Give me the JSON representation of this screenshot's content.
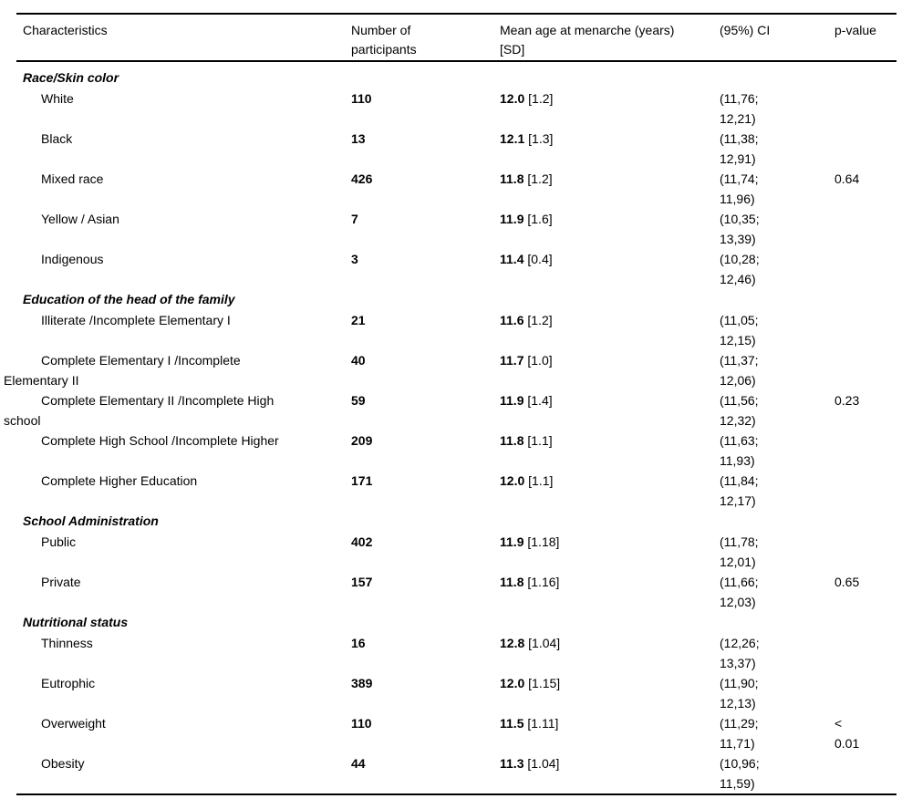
{
  "page": {
    "background_color": "#ffffff",
    "text_color": "#000000",
    "rule_color": "#000000"
  },
  "table": {
    "headers": {
      "characteristics": "Characteristics",
      "participants": [
        "Number of",
        "participants"
      ],
      "mean_age": [
        "Mean age at menarche (years)",
        "[SD]"
      ],
      "ci": "(95%) CI",
      "p_value": "p-value"
    },
    "sections": [
      {
        "title": "Race/Skin color",
        "rows": [
          {
            "label": "White",
            "n": "110",
            "mean": "12.0",
            "sd": "[1.2]",
            "ci": [
              "(11,76;",
              "12,21)"
            ],
            "p": ""
          },
          {
            "label": "Black",
            "n": "13",
            "mean": "12.1",
            "sd": "[1.3]",
            "ci": [
              "(11,38;",
              "12,91)"
            ],
            "p": ""
          },
          {
            "label": "Mixed race",
            "n": "426",
            "mean": "11.8",
            "sd": "[1.2]",
            "ci": [
              "(11,74;",
              "11,96)"
            ],
            "p": "0.64"
          },
          {
            "label": "Yellow / Asian",
            "n": "7",
            "mean": "11.9",
            "sd": "[1.6]",
            "ci": [
              "(10,35;",
              "13,39)"
            ],
            "p": ""
          },
          {
            "label": "Indigenous",
            "n": "3",
            "mean": "11.4",
            "sd": "[0.4]",
            "ci": [
              "(10,28;",
              "12,46)"
            ],
            "p": ""
          }
        ]
      },
      {
        "title": "Education of the head of the family",
        "rows": [
          {
            "label": "Illiterate /Incomplete Elementary I",
            "n": "21",
            "mean": "11.6",
            "sd": "[1.2]",
            "ci": [
              "(11,05;",
              "12,15)"
            ],
            "p": ""
          },
          {
            "label": "Complete Elementary I /Incomplete Elementary II",
            "n": "40",
            "mean": "11.7",
            "sd": "[1.0]",
            "ci": [
              "(11,37;",
              "12,06)"
            ],
            "p": ""
          },
          {
            "label": "Complete Elementary II /Incomplete High school",
            "n": "59",
            "mean": "11.9",
            "sd": "[1.4]",
            "ci": [
              "(11,56;",
              "12,32)"
            ],
            "p": "0.23"
          },
          {
            "label": "Complete High School /Incomplete Higher",
            "n": "209",
            "mean": "11.8",
            "sd": "[1.1]",
            "ci": [
              "(11,63;",
              "11,93)"
            ],
            "p": ""
          },
          {
            "label": "Complete Higher Education",
            "n": "171",
            "mean": "12.0",
            "sd": "[1.1]",
            "ci": [
              "(11,84;",
              "12,17)"
            ],
            "p": ""
          }
        ]
      },
      {
        "title": "School Administration",
        "rows": [
          {
            "label": "Public",
            "n": "402",
            "mean": "11.9",
            "sd": "[1.18]",
            "ci": [
              "(11,78;",
              "12,01)"
            ],
            "p": ""
          },
          {
            "label": "Private",
            "n": "157",
            "mean": "11.8",
            "sd": "[1.16]",
            "ci": [
              "(11,66;",
              "12,03)"
            ],
            "p": "0.65"
          }
        ]
      },
      {
        "title": "Nutritional status",
        "rows": [
          {
            "label": "Thinness",
            "n": "16",
            "mean": "12.8",
            "sd": "[1.04]",
            "ci": [
              "(12,26;",
              "13,37)"
            ],
            "p": ""
          },
          {
            "label": "Eutrophic",
            "n": "389",
            "mean": "12.0",
            "sd": "[1.15]",
            "ci": [
              "(11,90;",
              "12,13)"
            ],
            "p": ""
          },
          {
            "label": "Overweight",
            "n": "110",
            "mean": "11.5",
            "sd": "[1.11]",
            "ci": [
              "(11,29;",
              "11,71)"
            ],
            "p": [
              "<",
              "0.01"
            ]
          },
          {
            "label": "Obesity",
            "n": "44",
            "mean": "11.3",
            "sd": "[1.04]",
            "ci": [
              "(10,96;",
              "11,59)"
            ],
            "p": ""
          }
        ]
      }
    ]
  }
}
